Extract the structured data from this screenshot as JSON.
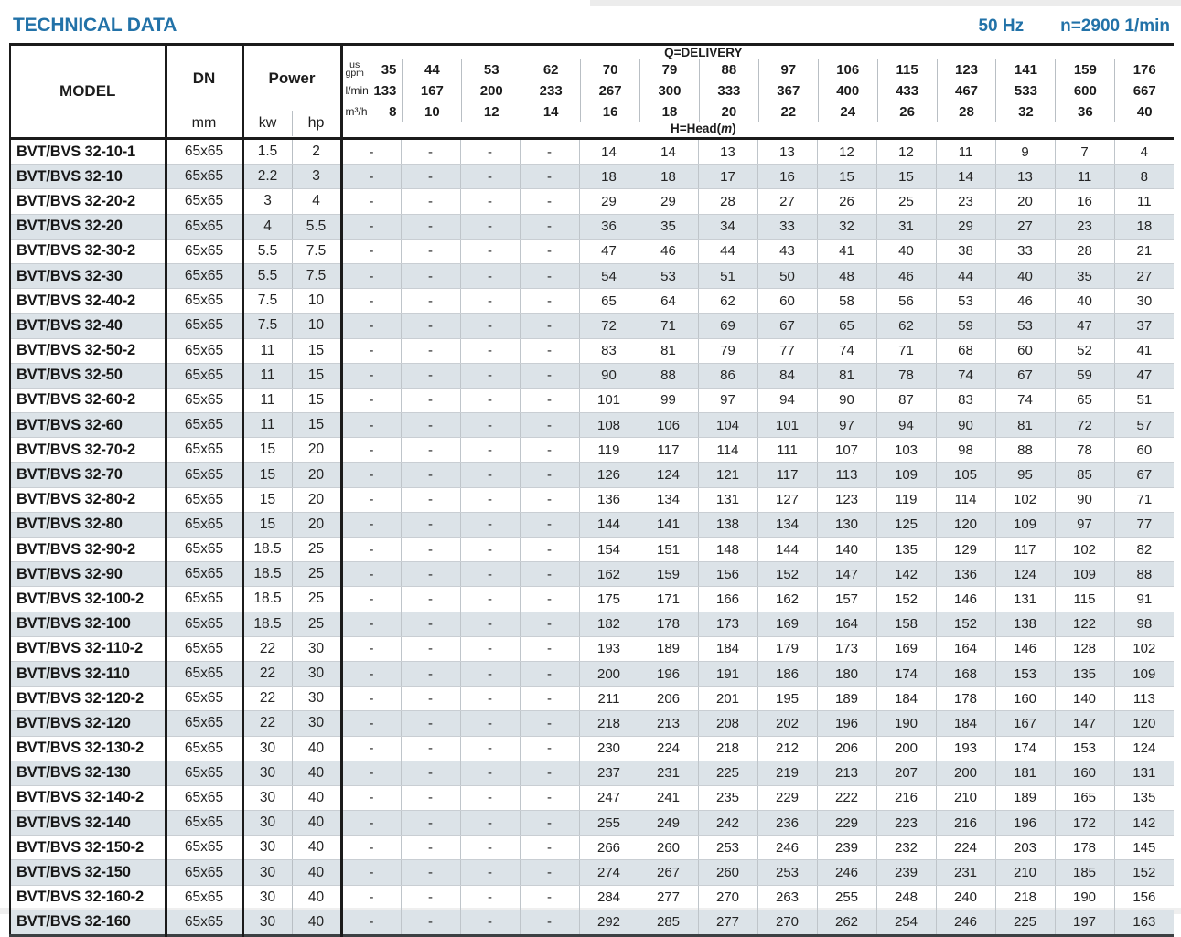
{
  "page": {
    "title": "TECHNICAL DATA",
    "frequency": "50 Hz",
    "speed": "n=2900 1/min"
  },
  "colors": {
    "accent_blue": "#2272a8",
    "shaded_row": "#dce3e8",
    "grid_line": "#b9bfc4",
    "heavy_line": "#1b1b1b"
  },
  "table": {
    "col_model": "MODEL",
    "col_dn": "DN",
    "col_dn_unit": "mm",
    "col_power": "Power",
    "col_kw": "kw",
    "col_hp": "hp",
    "delivery_label": "Q=DELIVERY",
    "head_label_prefix": "H=Head(",
    "head_label_m": "m",
    "head_label_suffix": ")",
    "unit_rows": [
      {
        "name": "us-gpm-row",
        "label_lines": [
          "us",
          "gpm"
        ],
        "values": [
          35,
          44,
          53,
          62,
          70,
          79,
          88,
          97,
          106,
          115,
          123,
          141,
          159,
          176
        ]
      },
      {
        "name": "l-min-row",
        "label_lines": [
          "l/min"
        ],
        "values": [
          133,
          167,
          200,
          233,
          267,
          300,
          333,
          367,
          400,
          433,
          467,
          533,
          600,
          667
        ]
      },
      {
        "name": "m3-h-row",
        "label_lines": [
          "m³/h"
        ],
        "values": [
          8,
          10,
          12,
          14,
          16,
          18,
          20,
          22,
          24,
          26,
          28,
          32,
          36,
          40
        ]
      }
    ],
    "rows": [
      {
        "model": "BVT/BVS 32-10-1",
        "dn": "65x65",
        "kw": "1.5",
        "hp": "2",
        "heads": [
          "-",
          "-",
          "-",
          "-",
          14,
          14,
          13,
          13,
          12,
          12,
          11,
          9,
          7,
          4
        ]
      },
      {
        "model": "BVT/BVS 32-10",
        "dn": "65x65",
        "kw": "2.2",
        "hp": "3",
        "heads": [
          "-",
          "-",
          "-",
          "-",
          18,
          18,
          17,
          16,
          15,
          15,
          14,
          13,
          11,
          8
        ]
      },
      {
        "model": "BVT/BVS 32-20-2",
        "dn": "65x65",
        "kw": "3",
        "hp": "4",
        "heads": [
          "-",
          "-",
          "-",
          "-",
          29,
          29,
          28,
          27,
          26,
          25,
          23,
          20,
          16,
          11
        ]
      },
      {
        "model": "BVT/BVS 32-20",
        "dn": "65x65",
        "kw": "4",
        "hp": "5.5",
        "heads": [
          "-",
          "-",
          "-",
          "-",
          36,
          35,
          34,
          33,
          32,
          31,
          29,
          27,
          23,
          18
        ]
      },
      {
        "model": "BVT/BVS 32-30-2",
        "dn": "65x65",
        "kw": "5.5",
        "hp": "7.5",
        "heads": [
          "-",
          "-",
          "-",
          "-",
          47,
          46,
          44,
          43,
          41,
          40,
          38,
          33,
          28,
          21
        ]
      },
      {
        "model": "BVT/BVS 32-30",
        "dn": "65x65",
        "kw": "5.5",
        "hp": "7.5",
        "heads": [
          "-",
          "-",
          "-",
          "-",
          54,
          53,
          51,
          50,
          48,
          46,
          44,
          40,
          35,
          27
        ]
      },
      {
        "model": "BVT/BVS 32-40-2",
        "dn": "65x65",
        "kw": "7.5",
        "hp": "10",
        "heads": [
          "-",
          "-",
          "-",
          "-",
          65,
          64,
          62,
          60,
          58,
          56,
          53,
          46,
          40,
          30
        ]
      },
      {
        "model": "BVT/BVS 32-40",
        "dn": "65x65",
        "kw": "7.5",
        "hp": "10",
        "heads": [
          "-",
          "-",
          "-",
          "-",
          72,
          71,
          69,
          67,
          65,
          62,
          59,
          53,
          47,
          37
        ]
      },
      {
        "model": "BVT/BVS 32-50-2",
        "dn": "65x65",
        "kw": "11",
        "hp": "15",
        "heads": [
          "-",
          "-",
          "-",
          "-",
          83,
          81,
          79,
          77,
          74,
          71,
          68,
          60,
          52,
          41
        ]
      },
      {
        "model": "BVT/BVS 32-50",
        "dn": "65x65",
        "kw": "11",
        "hp": "15",
        "heads": [
          "-",
          "-",
          "-",
          "-",
          90,
          88,
          86,
          84,
          81,
          78,
          74,
          67,
          59,
          47
        ]
      },
      {
        "model": "BVT/BVS 32-60-2",
        "dn": "65x65",
        "kw": "11",
        "hp": "15",
        "heads": [
          "-",
          "-",
          "-",
          "-",
          101,
          99,
          97,
          94,
          90,
          87,
          83,
          74,
          65,
          51
        ]
      },
      {
        "model": "BVT/BVS 32-60",
        "dn": "65x65",
        "kw": "11",
        "hp": "15",
        "heads": [
          "-",
          "-",
          "-",
          "-",
          108,
          106,
          104,
          101,
          97,
          94,
          90,
          81,
          72,
          57
        ]
      },
      {
        "model": "BVT/BVS 32-70-2",
        "dn": "65x65",
        "kw": "15",
        "hp": "20",
        "heads": [
          "-",
          "-",
          "-",
          "-",
          119,
          117,
          114,
          111,
          107,
          103,
          98,
          88,
          78,
          60
        ]
      },
      {
        "model": "BVT/BVS 32-70",
        "dn": "65x65",
        "kw": "15",
        "hp": "20",
        "heads": [
          "-",
          "-",
          "-",
          "-",
          126,
          124,
          121,
          117,
          113,
          109,
          105,
          95,
          85,
          67
        ]
      },
      {
        "model": "BVT/BVS 32-80-2",
        "dn": "65x65",
        "kw": "15",
        "hp": "20",
        "heads": [
          "-",
          "-",
          "-",
          "-",
          136,
          134,
          131,
          127,
          123,
          119,
          114,
          102,
          90,
          71
        ]
      },
      {
        "model": "BVT/BVS 32-80",
        "dn": "65x65",
        "kw": "15",
        "hp": "20",
        "heads": [
          "-",
          "-",
          "-",
          "-",
          144,
          141,
          138,
          134,
          130,
          125,
          120,
          109,
          97,
          77
        ]
      },
      {
        "model": "BVT/BVS 32-90-2",
        "dn": "65x65",
        "kw": "18.5",
        "hp": "25",
        "heads": [
          "-",
          "-",
          "-",
          "-",
          154,
          151,
          148,
          144,
          140,
          135,
          129,
          117,
          102,
          82
        ]
      },
      {
        "model": "BVT/BVS 32-90",
        "dn": "65x65",
        "kw": "18.5",
        "hp": "25",
        "heads": [
          "-",
          "-",
          "-",
          "-",
          162,
          159,
          156,
          152,
          147,
          142,
          136,
          124,
          109,
          88
        ]
      },
      {
        "model": "BVT/BVS 32-100-2",
        "dn": "65x65",
        "kw": "18.5",
        "hp": "25",
        "heads": [
          "-",
          "-",
          "-",
          "-",
          175,
          171,
          166,
          162,
          157,
          152,
          146,
          131,
          115,
          91
        ]
      },
      {
        "model": "BVT/BVS 32-100",
        "dn": "65x65",
        "kw": "18.5",
        "hp": "25",
        "heads": [
          "-",
          "-",
          "-",
          "-",
          182,
          178,
          173,
          169,
          164,
          158,
          152,
          138,
          122,
          98
        ]
      },
      {
        "model": "BVT/BVS 32-110-2",
        "dn": "65x65",
        "kw": "22",
        "hp": "30",
        "heads": [
          "-",
          "-",
          "-",
          "-",
          193,
          189,
          184,
          179,
          173,
          169,
          164,
          146,
          128,
          102
        ]
      },
      {
        "model": "BVT/BVS 32-110",
        "dn": "65x65",
        "kw": "22",
        "hp": "30",
        "heads": [
          "-",
          "-",
          "-",
          "-",
          200,
          196,
          191,
          186,
          180,
          174,
          168,
          153,
          135,
          109
        ]
      },
      {
        "model": "BVT/BVS 32-120-2",
        "dn": "65x65",
        "kw": "22",
        "hp": "30",
        "heads": [
          "-",
          "-",
          "-",
          "-",
          211,
          206,
          201,
          195,
          189,
          184,
          178,
          160,
          140,
          113
        ]
      },
      {
        "model": "BVT/BVS 32-120",
        "dn": "65x65",
        "kw": "22",
        "hp": "30",
        "heads": [
          "-",
          "-",
          "-",
          "-",
          218,
          213,
          208,
          202,
          196,
          190,
          184,
          167,
          147,
          120
        ]
      },
      {
        "model": "BVT/BVS 32-130-2",
        "dn": "65x65",
        "kw": "30",
        "hp": "40",
        "heads": [
          "-",
          "-",
          "-",
          "-",
          230,
          224,
          218,
          212,
          206,
          200,
          193,
          174,
          153,
          124
        ]
      },
      {
        "model": "BVT/BVS 32-130",
        "dn": "65x65",
        "kw": "30",
        "hp": "40",
        "heads": [
          "-",
          "-",
          "-",
          "-",
          237,
          231,
          225,
          219,
          213,
          207,
          200,
          181,
          160,
          131
        ]
      },
      {
        "model": "BVT/BVS 32-140-2",
        "dn": "65x65",
        "kw": "30",
        "hp": "40",
        "heads": [
          "-",
          "-",
          "-",
          "-",
          247,
          241,
          235,
          229,
          222,
          216,
          210,
          189,
          165,
          135
        ]
      },
      {
        "model": "BVT/BVS 32-140",
        "dn": "65x65",
        "kw": "30",
        "hp": "40",
        "heads": [
          "-",
          "-",
          "-",
          "-",
          255,
          249,
          242,
          236,
          229,
          223,
          216,
          196,
          172,
          142
        ]
      },
      {
        "model": "BVT/BVS 32-150-2",
        "dn": "65x65",
        "kw": "30",
        "hp": "40",
        "heads": [
          "-",
          "-",
          "-",
          "-",
          266,
          260,
          253,
          246,
          239,
          232,
          224,
          203,
          178,
          145
        ]
      },
      {
        "model": "BVT/BVS 32-150",
        "dn": "65x65",
        "kw": "30",
        "hp": "40",
        "heads": [
          "-",
          "-",
          "-",
          "-",
          274,
          267,
          260,
          253,
          246,
          239,
          231,
          210,
          185,
          152
        ]
      },
      {
        "model": "BVT/BVS 32-160-2",
        "dn": "65x65",
        "kw": "30",
        "hp": "40",
        "heads": [
          "-",
          "-",
          "-",
          "-",
          284,
          277,
          270,
          263,
          255,
          248,
          240,
          218,
          190,
          156
        ]
      },
      {
        "model": "BVT/BVS 32-160",
        "dn": "65x65",
        "kw": "30",
        "hp": "40",
        "heads": [
          "-",
          "-",
          "-",
          "-",
          292,
          285,
          277,
          270,
          262,
          254,
          246,
          225,
          197,
          163
        ]
      }
    ]
  }
}
